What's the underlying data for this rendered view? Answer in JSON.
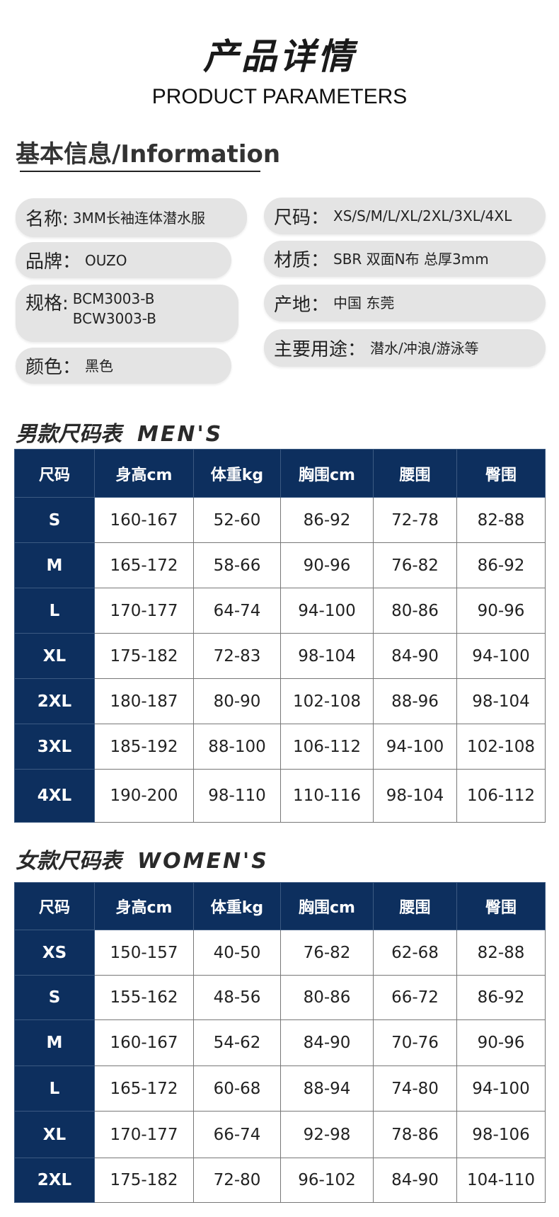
{
  "header": {
    "title_cn": "产品详情",
    "title_en": "PRODUCT PARAMETERS"
  },
  "info": {
    "title": "基本信息/Information",
    "left": [
      {
        "k": "名称:",
        "v": "3MM长袖连体潜水服"
      },
      {
        "k": "品牌：",
        "v": "OUZO"
      },
      {
        "k": "规格:",
        "v": "BCM3003-B\nBCW3003-B"
      },
      {
        "k": "颜色：",
        "v": "黑色"
      }
    ],
    "right": [
      {
        "k": "尺码：",
        "v": "XS/S/M/L/XL/2XL/3XL/4XL"
      },
      {
        "k": "材质：",
        "v": "SBR 双面N布 总厚3mm"
      },
      {
        "k": "产地：",
        "v": "中国 东莞"
      },
      {
        "k": "主要用途：",
        "v": "潜水/冲浪/游泳等"
      }
    ]
  },
  "men": {
    "title_cn": "男款尺码表",
    "title_en": "MEN'S",
    "headers": [
      "尺码",
      "身高cm",
      "体重kg",
      "胸围cm",
      "腰围",
      "臀围"
    ],
    "rows": [
      [
        "S",
        "160-167",
        "52-60",
        "86-92",
        "72-78",
        "82-88"
      ],
      [
        "M",
        "165-172",
        "58-66",
        "90-96",
        "76-82",
        "86-92"
      ],
      [
        "L",
        "170-177",
        "64-74",
        "94-100",
        "80-86",
        "90-96"
      ],
      [
        "XL",
        "175-182",
        "72-83",
        "98-104",
        "84-90",
        "94-100"
      ],
      [
        "2XL",
        "180-187",
        "80-90",
        "102-108",
        "88-96",
        "98-104"
      ],
      [
        "3XL",
        "185-192",
        "88-100",
        "106-112",
        "94-100",
        "102-108"
      ],
      [
        "4XL",
        "190-200",
        "98-110",
        "110-116",
        "98-104",
        "106-112"
      ]
    ]
  },
  "women": {
    "title_cn": "女款尺码表",
    "title_en": "WOMEN'S",
    "headers": [
      "尺码",
      "身高cm",
      "体重kg",
      "胸围cm",
      "腰围",
      "臀围"
    ],
    "rows": [
      [
        "XS",
        "150-157",
        "40-50",
        "76-82",
        "62-68",
        "82-88"
      ],
      [
        "S",
        "155-162",
        "48-56",
        "80-86",
        "66-72",
        "86-92"
      ],
      [
        "M",
        "160-167",
        "54-62",
        "84-90",
        "70-76",
        "90-96"
      ],
      [
        "L",
        "165-172",
        "60-68",
        "88-94",
        "74-80",
        "94-100"
      ],
      [
        "XL",
        "170-177",
        "66-74",
        "92-98",
        "78-86",
        "98-106"
      ],
      [
        "2XL",
        "175-182",
        "72-80",
        "96-102",
        "84-90",
        "104-110"
      ]
    ]
  },
  "colors": {
    "header_bg": "#0d2f5e",
    "pill_bg": "#e4e4e4"
  }
}
